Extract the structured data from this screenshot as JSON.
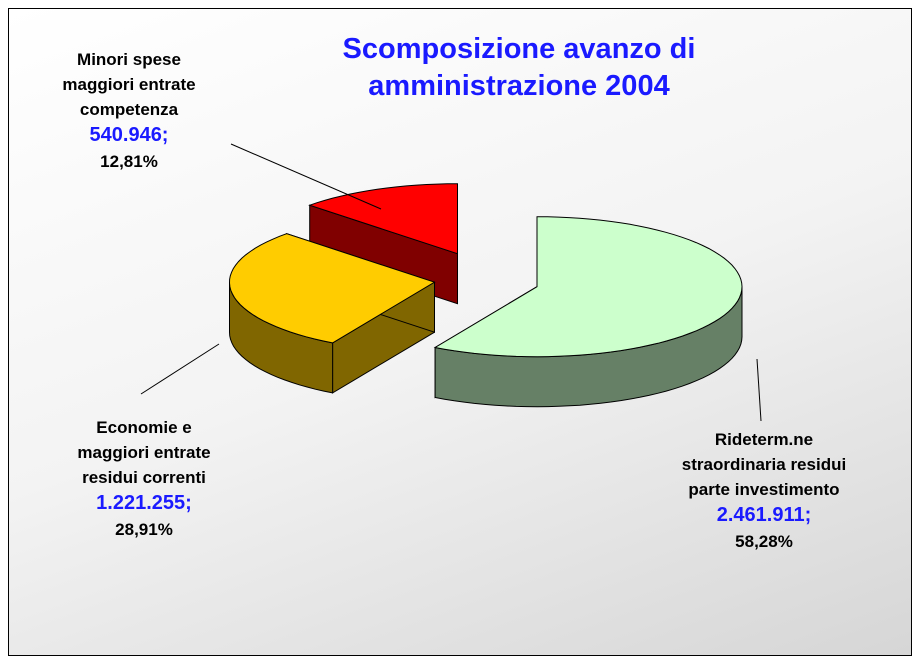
{
  "chart_data": {
    "type": "pie3d",
    "title": "Scomposizione avanzo di amministrazione 2004",
    "categories": [
      "Rideterm.ne straordinaria residui parte investimento",
      "Economie e maggiori entrate residui correnti",
      "Minori spese maggiori entrate competenza"
    ],
    "values": [
      2461911,
      1221255,
      540946
    ],
    "value_labels": [
      "2.461.911;",
      "1.221.255;",
      "540.946;"
    ],
    "percentages": [
      58.28,
      28.91,
      12.81
    ],
    "percentage_labels": [
      "58,28%",
      "28,91%",
      "12,81%"
    ],
    "colors": [
      "#ccffcc",
      "#ffcc00",
      "#ff0000"
    ]
  }
}
